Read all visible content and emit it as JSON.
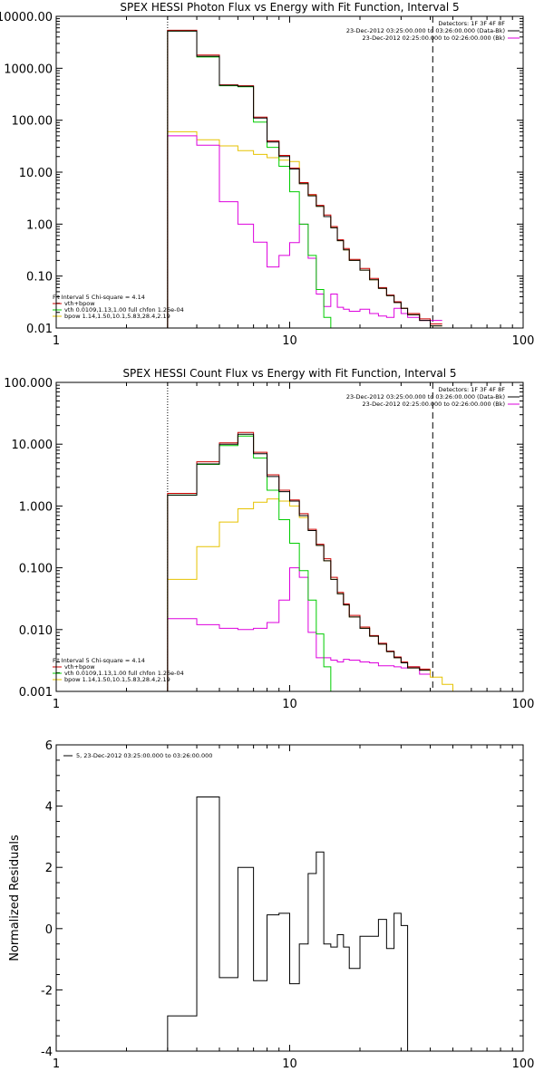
{
  "colors": {
    "total": "#000000",
    "fit_sum": "#cc0000",
    "vth": "#00cc00",
    "bpow": "#e6c200",
    "background": "#dd00dd",
    "frame": "#000000"
  },
  "chart_data": [
    {
      "type": "line",
      "style": "histogram",
      "title": "SPEX HESSI Photon Flux vs Energy with Fit Function, Interval 5",
      "xlabel": "",
      "ylabel": "",
      "xscale": "log",
      "yscale": "log",
      "xlim": [
        1,
        100
      ],
      "ylim": [
        0.01,
        10000
      ],
      "xticks": [
        1,
        10,
        100
      ],
      "xtick_labels": [
        "1",
        "10",
        "100"
      ],
      "yticks": [
        0.01,
        0.1,
        1,
        10,
        100,
        1000,
        10000
      ],
      "ytick_labels": [
        "0.01",
        "0.10",
        "1.00",
        "10.00",
        "100.00",
        "1000.00",
        "10000.00"
      ],
      "vlines": [
        {
          "x": 3,
          "style": "dotted"
        },
        {
          "x": 41,
          "style": "dashed"
        }
      ],
      "legend_top_right": [
        "Detectors: 1F 3F 4F 8F",
        "23-Dec-2012 03:25:00.000 to 03:26:00.000 (Data-Bk)",
        "23-Dec-2012 02:25:00.000 to 02:26:00.000 (Bk)"
      ],
      "legend_top_right_series": [
        "total",
        "background"
      ],
      "legend_bottom_left": [
        "Fit Interval 5   Chi-square = 4.14",
        "vth+bpow",
        "vth 0.0109,1.13,1.00  full chfon 1.26e-04",
        "bpow 1.14,1.50,10.1,5.83,28.4,2.19"
      ],
      "legend_bottom_left_series": [
        "fit_sum",
        "vth",
        "bpow"
      ],
      "edges": [
        3,
        4,
        5,
        6,
        7,
        8,
        9,
        10,
        11,
        12,
        13,
        14,
        15,
        16,
        17,
        18,
        20,
        22,
        24,
        26,
        28,
        30,
        32,
        36,
        40,
        45
      ],
      "series": [
        {
          "id": "fit_sum",
          "values": [
            5400,
            1800,
            480,
            460,
            115,
            40,
            21,
            12,
            6.3,
            3.7,
            2.3,
            1.5,
            0.9,
            0.5,
            0.34,
            0.21,
            0.14,
            0.09,
            0.06,
            0.043,
            0.032,
            0.024,
            0.019,
            0.015,
            0.012
          ]
        },
        {
          "id": "total",
          "values": [
            5200,
            1700,
            470,
            450,
            110,
            38,
            20,
            11.5,
            6,
            3.5,
            2.2,
            1.4,
            0.85,
            0.48,
            0.32,
            0.2,
            0.13,
            0.085,
            0.058,
            0.042,
            0.031,
            0.024,
            0.018,
            0.014,
            0.011
          ]
        },
        {
          "id": "vth",
          "values": [
            5200,
            1650,
            460,
            440,
            92,
            30,
            13,
            4.2,
            1.0,
            0.25,
            0.055,
            0.016,
            0.003
          ]
        },
        {
          "id": "bpow",
          "values": [
            60,
            42,
            32,
            26,
            22,
            19,
            17,
            16,
            6.0,
            3.6,
            2.2,
            1.4,
            0.85,
            0.48,
            0.32,
            0.2,
            0.13,
            0.085,
            0.058,
            0.042,
            0.031,
            0.024,
            0.018,
            0.014,
            0.011
          ]
        },
        {
          "id": "background",
          "values": [
            50,
            33,
            2.7,
            1.0,
            0.45,
            0.15,
            0.25,
            0.44,
            1.0,
            0.22,
            0.045,
            0.026,
            0.045,
            0.025,
            0.023,
            0.021,
            0.023,
            0.019,
            0.017,
            0.016,
            0.024,
            0.019,
            0.016,
            0.014,
            0.014
          ]
        }
      ]
    },
    {
      "type": "line",
      "style": "histogram",
      "title": "SPEX HESSI Count Flux vs Energy with Fit Function, Interval 5",
      "xlabel": "",
      "ylabel": "",
      "xscale": "log",
      "yscale": "log",
      "xlim": [
        1,
        100
      ],
      "ylim": [
        0.001,
        100
      ],
      "xticks": [
        1,
        10,
        100
      ],
      "xtick_labels": [
        "1",
        "10",
        "100"
      ],
      "yticks": [
        0.001,
        0.01,
        0.1,
        1,
        10,
        100
      ],
      "ytick_labels": [
        "0.001",
        "0.010",
        "0.100",
        "1.000",
        "10.000",
        "100.000"
      ],
      "vlines": [
        {
          "x": 3,
          "style": "dotted"
        },
        {
          "x": 41,
          "style": "dashed"
        }
      ],
      "legend_top_right": [
        "Detectors: 1F 3F 4F 8F",
        "23-Dec-2012 03:25:00.000 to 03:26:00.000 (Data-Bk)",
        "23-Dec-2012 02:25:00.000 to 02:26:00.000 (Bk)"
      ],
      "legend_top_right_series": [
        "total",
        "background"
      ],
      "legend_bottom_left": [
        "Fit Interval 5   Chi-square = 4.14",
        "vth+bpow",
        "vth 0.0109,1.13,1.00  full chfon 1.26e-04",
        "bpow 1.14,1.50,10.1,5.83,28.4,2.19"
      ],
      "legend_bottom_left_series": [
        "fit_sum",
        "vth",
        "bpow"
      ],
      "edges": [
        3,
        4,
        5,
        6,
        7,
        8,
        9,
        10,
        11,
        12,
        13,
        14,
        15,
        16,
        17,
        18,
        20,
        22,
        24,
        26,
        28,
        30,
        32,
        36,
        40,
        45,
        50,
        55,
        60
      ],
      "series": [
        {
          "id": "fit_sum",
          "values": [
            1.6,
            5.2,
            10.5,
            15.5,
            7.4,
            3.2,
            1.8,
            1.25,
            0.75,
            0.42,
            0.24,
            0.14,
            0.07,
            0.04,
            0.026,
            0.017,
            0.011,
            0.008,
            0.006,
            0.0045,
            0.0036,
            0.003,
            0.0025,
            0.0023
          ]
        },
        {
          "id": "total",
          "values": [
            1.5,
            4.8,
            10,
            14.5,
            7.0,
            3.0,
            1.7,
            1.2,
            0.7,
            0.4,
            0.23,
            0.13,
            0.065,
            0.038,
            0.025,
            0.016,
            0.0105,
            0.0078,
            0.0058,
            0.0044,
            0.0035,
            0.0029,
            0.0024,
            0.0022
          ]
        },
        {
          "id": "vth",
          "values": [
            1.5,
            4.7,
            9.5,
            13.5,
            6.0,
            1.8,
            0.6,
            0.25,
            0.09,
            0.03,
            0.0085,
            0.0025,
            0.0008
          ]
        },
        {
          "id": "bpow",
          "values": [
            0.065,
            0.22,
            0.55,
            0.9,
            1.15,
            1.3,
            1.2,
            1.0,
            0.65,
            0.4,
            0.23,
            0.13,
            0.065,
            0.038,
            0.025,
            0.016,
            0.0105,
            0.0078,
            0.0058,
            0.0044,
            0.0035,
            0.0029,
            0.0024,
            0.0022,
            0.0017,
            0.0013,
            0.001,
            0.0008
          ]
        },
        {
          "id": "background",
          "values": [
            0.015,
            0.012,
            0.0105,
            0.01,
            0.0105,
            0.013,
            0.03,
            0.1,
            0.07,
            0.009,
            0.0035,
            0.0035,
            0.0032,
            0.003,
            0.0033,
            0.0032,
            0.003,
            0.0029,
            0.0026,
            0.0026,
            0.0025,
            0.0024,
            0.0025,
            0.0019
          ]
        }
      ]
    },
    {
      "type": "line",
      "style": "histogram",
      "title": "",
      "xlabel": "",
      "ylabel": "Normalized Residuals",
      "xscale": "log",
      "yscale": "linear",
      "xlim": [
        1,
        100
      ],
      "ylim": [
        -4,
        6
      ],
      "xticks": [
        1,
        10,
        100
      ],
      "xtick_labels": [
        "1",
        "10",
        "100"
      ],
      "yticks": [
        -4,
        -2,
        0,
        2,
        4,
        6
      ],
      "ytick_labels": [
        "-4",
        "-2",
        "0",
        "2",
        "4",
        "6"
      ],
      "legend": "5, 23-Dec-2012 03:25:00.000 to 03:26:00.000",
      "edges": [
        3,
        4,
        5,
        6,
        7,
        8,
        9,
        10,
        11,
        12,
        13,
        14,
        15,
        16,
        17,
        18,
        20,
        22,
        24,
        26,
        28,
        30,
        32,
        36,
        40
      ],
      "series": [
        {
          "id": "total",
          "values": [
            -2.85,
            4.3,
            -1.6,
            2.0,
            -1.7,
            0.45,
            0.5,
            -1.8,
            -0.5,
            1.8,
            2.5,
            -0.5,
            -0.6,
            -0.2,
            -0.6,
            -1.3,
            -0.25,
            -0.25,
            0.3,
            -0.65,
            0.5,
            0.1
          ]
        }
      ]
    }
  ]
}
